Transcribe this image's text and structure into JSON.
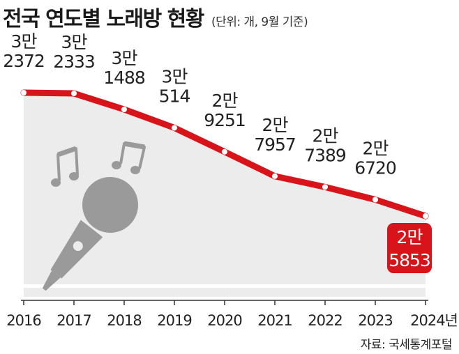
{
  "header": {
    "title": "전국 연도별 노래방 현황",
    "unit": "(단위: 개, 9월 기준)"
  },
  "source": "자료: 국세통계포털",
  "colors": {
    "line": "#d7141a",
    "area": "#ececec",
    "icon": "#9a9a9a",
    "label_box": "#d7141a"
  },
  "icons": [
    "microphone-icon",
    "music-note-icon"
  ],
  "chart_data": {
    "type": "area",
    "x": [
      "2016",
      "2017",
      "2018",
      "2019",
      "2020",
      "2021",
      "2022",
      "2023",
      "2024년"
    ],
    "values": [
      32372,
      32333,
      31488,
      30514,
      29251,
      27957,
      27389,
      26720,
      25853
    ],
    "labels": [
      [
        "3만",
        "2372"
      ],
      [
        "3만",
        "2333"
      ],
      [
        "3만",
        "1488"
      ],
      [
        "3만",
        "514"
      ],
      [
        "2만",
        "9251"
      ],
      [
        "2만",
        "7957"
      ],
      [
        "2만",
        "7389"
      ],
      [
        "2만",
        "6720"
      ],
      [
        "2만",
        "5853"
      ]
    ],
    "title": "전국 연도별 노래방 현황",
    "highlight_last": true
  }
}
